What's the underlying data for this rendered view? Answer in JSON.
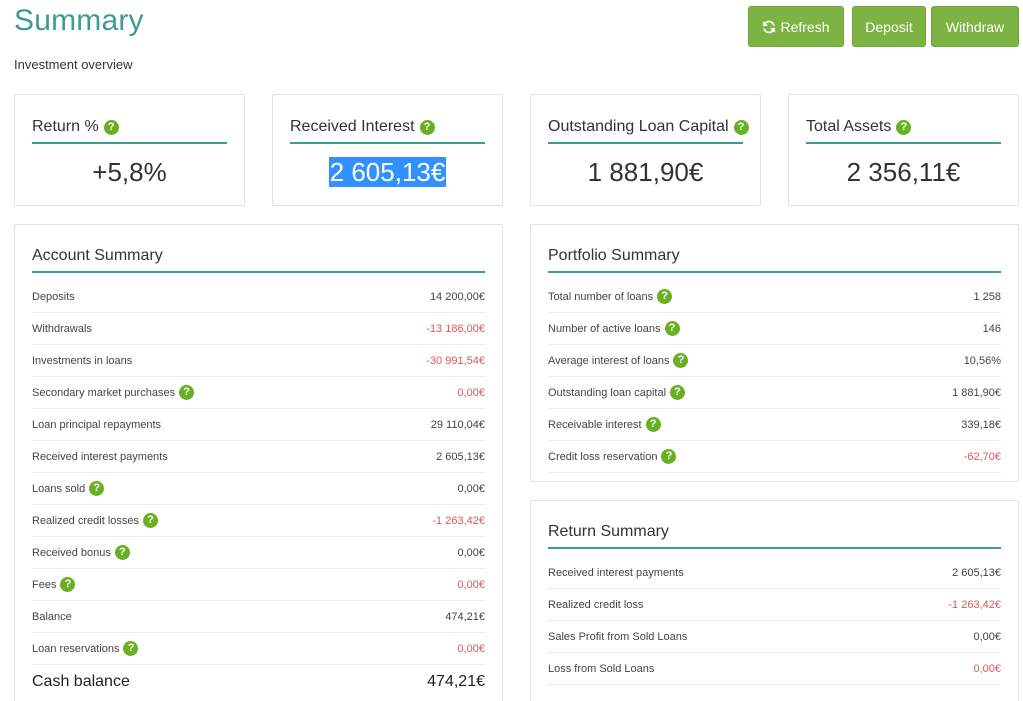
{
  "header": {
    "title": "Summary",
    "subtitle": "Investment overview",
    "buttons": {
      "refresh": "Refresh",
      "deposit": "Deposit",
      "withdraw": "Withdraw"
    }
  },
  "kpis": [
    {
      "label": "Return %",
      "value": "+5,8%"
    },
    {
      "label": "Received Interest",
      "value": "2 605,13€"
    },
    {
      "label": "Outstanding Loan Capital",
      "value": "1 881,90€"
    },
    {
      "label": "Total Assets",
      "value": "2 356,11€"
    }
  ],
  "account_summary": {
    "title": "Account Summary",
    "rows": [
      {
        "label": "Deposits",
        "value": "14 200,00€",
        "help": false,
        "negative": false
      },
      {
        "label": "Withdrawals",
        "value": "-13 186,00€",
        "help": false,
        "negative": true
      },
      {
        "label": "Investments in loans",
        "value": "-30 991,54€",
        "help": false,
        "negative": true
      },
      {
        "label": "Secondary market purchases",
        "value": "0,00€",
        "help": true,
        "negative": true
      },
      {
        "label": "Loan principal repayments",
        "value": "29 110,04€",
        "help": false,
        "negative": false
      },
      {
        "label": "Received interest payments",
        "value": "2 605,13€",
        "help": false,
        "negative": false
      },
      {
        "label": "Loans sold",
        "value": "0,00€",
        "help": true,
        "negative": false
      },
      {
        "label": "Realized credit losses",
        "value": "-1 263,42€",
        "help": true,
        "negative": true
      },
      {
        "label": "Received bonus",
        "value": "0,00€",
        "help": true,
        "negative": false
      },
      {
        "label": "Fees",
        "value": "0,00€",
        "help": true,
        "negative": true
      },
      {
        "label": "Balance",
        "value": "474,21€",
        "help": false,
        "negative": false
      },
      {
        "label": "Loan reservations",
        "value": "0,00€",
        "help": true,
        "negative": true
      }
    ],
    "cash_balance": {
      "label": "Cash balance",
      "value": "474,21€"
    }
  },
  "portfolio_summary": {
    "title": "Portfolio Summary",
    "rows": [
      {
        "label": "Total number of loans",
        "value": "1 258",
        "help": true,
        "negative": false
      },
      {
        "label": "Number of active loans",
        "value": "146",
        "help": true,
        "negative": false
      },
      {
        "label": "Average interest of loans",
        "value": "10,56%",
        "help": true,
        "negative": false
      },
      {
        "label": "Outstanding loan capital",
        "value": "1 881,90€",
        "help": true,
        "negative": false
      },
      {
        "label": "Receivable interest",
        "value": "339,18€",
        "help": true,
        "negative": false
      },
      {
        "label": "Credit loss reservation",
        "value": "-62,70€",
        "help": true,
        "negative": true
      }
    ]
  },
  "return_summary": {
    "title": "Return Summary",
    "rows": [
      {
        "label": "Received interest payments",
        "value": "2 605,13€",
        "help": false,
        "negative": false
      },
      {
        "label": "Realized credit loss",
        "value": "-1 263,42€",
        "help": false,
        "negative": true
      },
      {
        "label": "Sales Profit from Sold Loans",
        "value": "0,00€",
        "help": false,
        "negative": false
      },
      {
        "label": "Loss from Sold Loans",
        "value": "0,00€",
        "help": false,
        "negative": true
      }
    ]
  },
  "help_icon_glyph": "?",
  "colors": {
    "accent": "#3a9c92",
    "button": "#7cb342",
    "help": "#6ab023",
    "negative": "#e05555",
    "selection": "#3390ff"
  }
}
